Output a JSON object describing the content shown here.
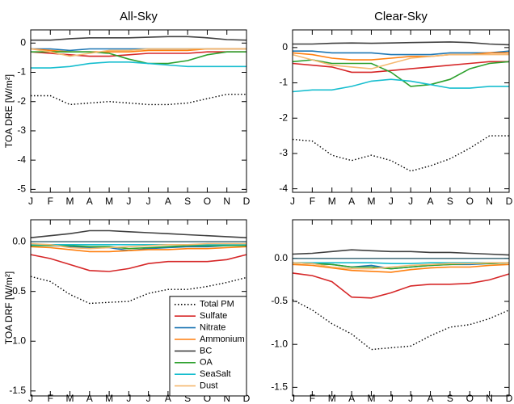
{
  "chart_data": [
    {
      "type": "line",
      "title": "All-Sky",
      "y_label": "TOA DRE [W/m²]",
      "categories": [
        "J",
        "F",
        "M",
        "A",
        "M",
        "J",
        "J",
        "A",
        "S",
        "O",
        "N",
        "D"
      ],
      "ylim": [
        -5.1,
        0.45
      ],
      "yticks": [
        0,
        -1,
        -2,
        -3,
        -4,
        -5
      ],
      "series": [
        {
          "color": "#000000",
          "line_style": "dotted",
          "values": [
            -1.8,
            -1.8,
            -2.1,
            -2.05,
            -2.0,
            -2.05,
            -2.1,
            -2.1,
            -2.05,
            -1.9,
            -1.75,
            -1.75
          ]
        },
        {
          "color": "#d62728",
          "values": [
            -0.3,
            -0.35,
            -0.4,
            -0.45,
            -0.45,
            -0.4,
            -0.35,
            -0.35,
            -0.35,
            -0.3,
            -0.3,
            -0.3
          ]
        },
        {
          "color": "#1f77b4",
          "values": [
            -0.2,
            -0.2,
            -0.25,
            -0.2,
            -0.2,
            -0.2,
            -0.2,
            -0.2,
            -0.2,
            -0.2,
            -0.2,
            -0.2
          ]
        },
        {
          "color": "#ff7f0e",
          "values": [
            -0.2,
            -0.25,
            -0.3,
            -0.3,
            -0.3,
            -0.3,
            -0.25,
            -0.25,
            -0.25,
            -0.2,
            -0.2,
            -0.2
          ]
        },
        {
          "color": "#404040",
          "values": [
            0.1,
            0.1,
            0.15,
            0.18,
            0.18,
            0.18,
            0.2,
            0.22,
            0.22,
            0.18,
            0.12,
            0.1
          ]
        },
        {
          "color": "#2ca02c",
          "values": [
            -0.3,
            -0.3,
            -0.3,
            -0.3,
            -0.35,
            -0.55,
            -0.7,
            -0.7,
            -0.6,
            -0.4,
            -0.3,
            -0.3
          ]
        },
        {
          "color": "#17becf",
          "values": [
            -0.85,
            -0.85,
            -0.8,
            -0.7,
            -0.65,
            -0.65,
            -0.7,
            -0.75,
            -0.8,
            -0.8,
            -0.8,
            -0.8
          ]
        },
        {
          "color": "#f5b971",
          "values": [
            -0.2,
            -0.3,
            -0.45,
            -0.35,
            -0.25,
            -0.25,
            -0.2,
            -0.2,
            -0.2,
            -0.2,
            -0.2,
            -0.2
          ]
        }
      ]
    },
    {
      "type": "line",
      "title": "Clear-Sky",
      "categories": [
        "J",
        "F",
        "M",
        "A",
        "M",
        "J",
        "J",
        "A",
        "S",
        "O",
        "N",
        "D"
      ],
      "ylim": [
        -4.1,
        0.5
      ],
      "yticks": [
        0,
        -1,
        -2,
        -3,
        -4
      ],
      "series": [
        {
          "color": "#000000",
          "line_style": "dotted",
          "values": [
            -2.6,
            -2.65,
            -3.05,
            -3.2,
            -3.05,
            -3.2,
            -3.5,
            -3.35,
            -3.15,
            -2.85,
            -2.5,
            -2.5
          ]
        },
        {
          "color": "#d62728",
          "values": [
            -0.45,
            -0.5,
            -0.55,
            -0.7,
            -0.7,
            -0.65,
            -0.6,
            -0.55,
            -0.5,
            -0.45,
            -0.4,
            -0.4
          ]
        },
        {
          "color": "#1f77b4",
          "values": [
            -0.1,
            -0.1,
            -0.15,
            -0.15,
            -0.15,
            -0.2,
            -0.2,
            -0.2,
            -0.15,
            -0.15,
            -0.15,
            -0.1
          ]
        },
        {
          "color": "#ff7f0e",
          "values": [
            -0.15,
            -0.2,
            -0.3,
            -0.35,
            -0.35,
            -0.3,
            -0.25,
            -0.25,
            -0.2,
            -0.2,
            -0.15,
            -0.15
          ]
        },
        {
          "color": "#404040",
          "values": [
            0.1,
            0.1,
            0.12,
            0.13,
            0.12,
            0.13,
            0.14,
            0.15,
            0.16,
            0.14,
            0.1,
            0.08
          ]
        },
        {
          "color": "#2ca02c",
          "values": [
            -0.4,
            -0.35,
            -0.45,
            -0.45,
            -0.45,
            -0.7,
            -1.1,
            -1.05,
            -0.9,
            -0.6,
            -0.45,
            -0.4
          ]
        },
        {
          "color": "#17becf",
          "values": [
            -1.25,
            -1.2,
            -1.2,
            -1.1,
            -0.95,
            -0.9,
            -0.95,
            -1.05,
            -1.15,
            -1.15,
            -1.1,
            -1.1
          ]
        },
        {
          "color": "#f5b971",
          "values": [
            -0.2,
            -0.35,
            -0.5,
            -0.55,
            -0.6,
            -0.45,
            -0.3,
            -0.25,
            -0.2,
            -0.2,
            -0.2,
            -0.2
          ]
        }
      ]
    },
    {
      "type": "line",
      "y_label": "TOA DRF [W/m²]",
      "categories": [
        "J",
        "F",
        "M",
        "A",
        "M",
        "J",
        "J",
        "A",
        "S",
        "O",
        "N",
        "D"
      ],
      "ylim": [
        -1.55,
        0.22
      ],
      "yticks": [
        {
          "value": 0,
          "label": "0.0"
        },
        -0.5,
        {
          "value": -1,
          "label": "-1.0"
        },
        -1.5
      ],
      "zero_line": true,
      "legend": "lower right",
      "series": [
        {
          "name": "Total PM",
          "color": "#000000",
          "line_style": "dotted",
          "values": [
            -0.35,
            -0.4,
            -0.53,
            -0.62,
            -0.61,
            -0.6,
            -0.52,
            -0.48,
            -0.48,
            -0.45,
            -0.41,
            -0.36
          ]
        },
        {
          "name": "Sulfate",
          "color": "#d62728",
          "values": [
            -0.13,
            -0.17,
            -0.23,
            -0.29,
            -0.3,
            -0.27,
            -0.22,
            -0.2,
            -0.2,
            -0.2,
            -0.18,
            -0.13
          ]
        },
        {
          "name": "Nitrate",
          "color": "#1f77b4",
          "values": [
            -0.03,
            -0.04,
            -0.05,
            -0.06,
            -0.06,
            -0.09,
            -0.07,
            -0.06,
            -0.05,
            -0.05,
            -0.04,
            -0.03
          ]
        },
        {
          "name": "Ammonium",
          "color": "#ff7f0e",
          "values": [
            -0.05,
            -0.06,
            -0.08,
            -0.1,
            -0.1,
            -0.09,
            -0.08,
            -0.08,
            -0.07,
            -0.07,
            -0.06,
            -0.05
          ]
        },
        {
          "name": "BC",
          "color": "#404040",
          "values": [
            0.04,
            0.06,
            0.08,
            0.11,
            0.11,
            0.1,
            0.09,
            0.08,
            0.07,
            0.06,
            0.05,
            0.04
          ]
        },
        {
          "name": "OA",
          "color": "#2ca02c",
          "values": [
            -0.04,
            -0.04,
            -0.04,
            -0.05,
            -0.05,
            -0.07,
            -0.06,
            -0.05,
            -0.04,
            -0.04,
            -0.04,
            -0.04
          ]
        },
        {
          "name": "SeaSalt",
          "color": "#17becf",
          "values": [
            -0.03,
            -0.03,
            -0.03,
            -0.03,
            -0.03,
            -0.03,
            -0.03,
            -0.03,
            -0.03,
            -0.03,
            -0.03,
            -0.03
          ]
        },
        {
          "name": "Dust",
          "color": "#f5b971",
          "values": [
            -0.02,
            -0.03,
            -0.06,
            -0.07,
            -0.06,
            -0.05,
            -0.04,
            -0.03,
            -0.03,
            -0.02,
            -0.02,
            -0.02
          ]
        }
      ]
    },
    {
      "type": "line",
      "categories": [
        "J",
        "F",
        "M",
        "A",
        "M",
        "J",
        "J",
        "A",
        "S",
        "O",
        "N",
        "D"
      ],
      "ylim": [
        -1.6,
        0.45
      ],
      "yticks": [
        {
          "value": 0,
          "label": "0.0"
        },
        -0.5,
        {
          "value": -1,
          "label": "-1.0"
        },
        -1.5
      ],
      "zero_line": true,
      "series": [
        {
          "color": "#000000",
          "line_style": "dotted",
          "values": [
            -0.48,
            -0.6,
            -0.76,
            -0.88,
            -1.06,
            -1.04,
            -1.02,
            -0.9,
            -0.8,
            -0.77,
            -0.7,
            -0.6
          ]
        },
        {
          "color": "#d62728",
          "values": [
            -0.17,
            -0.2,
            -0.27,
            -0.45,
            -0.46,
            -0.4,
            -0.32,
            -0.3,
            -0.3,
            -0.29,
            -0.25,
            -0.18
          ]
        },
        {
          "color": "#1f77b4",
          "values": [
            -0.05,
            -0.06,
            -0.07,
            -0.1,
            -0.08,
            -0.12,
            -0.1,
            -0.08,
            -0.07,
            -0.07,
            -0.06,
            -0.05
          ]
        },
        {
          "color": "#ff7f0e",
          "values": [
            -0.07,
            -0.08,
            -0.11,
            -0.14,
            -0.15,
            -0.16,
            -0.13,
            -0.11,
            -0.1,
            -0.1,
            -0.08,
            -0.07
          ]
        },
        {
          "color": "#404040",
          "values": [
            0.05,
            0.06,
            0.08,
            0.1,
            0.09,
            0.08,
            0.08,
            0.07,
            0.07,
            0.06,
            0.05,
            0.04
          ]
        },
        {
          "color": "#2ca02c",
          "values": [
            -0.05,
            -0.06,
            -0.07,
            -0.1,
            -0.1,
            -0.12,
            -0.1,
            -0.08,
            -0.07,
            -0.06,
            -0.06,
            -0.05
          ]
        },
        {
          "color": "#17becf",
          "values": [
            -0.05,
            -0.05,
            -0.05,
            -0.05,
            -0.05,
            -0.06,
            -0.06,
            -0.05,
            -0.05,
            -0.05,
            -0.05,
            -0.05
          ]
        },
        {
          "color": "#f5b971",
          "values": [
            -0.05,
            -0.06,
            -0.1,
            -0.12,
            -0.12,
            -0.1,
            -0.08,
            -0.07,
            -0.06,
            -0.06,
            -0.05,
            -0.05
          ]
        }
      ]
    }
  ]
}
